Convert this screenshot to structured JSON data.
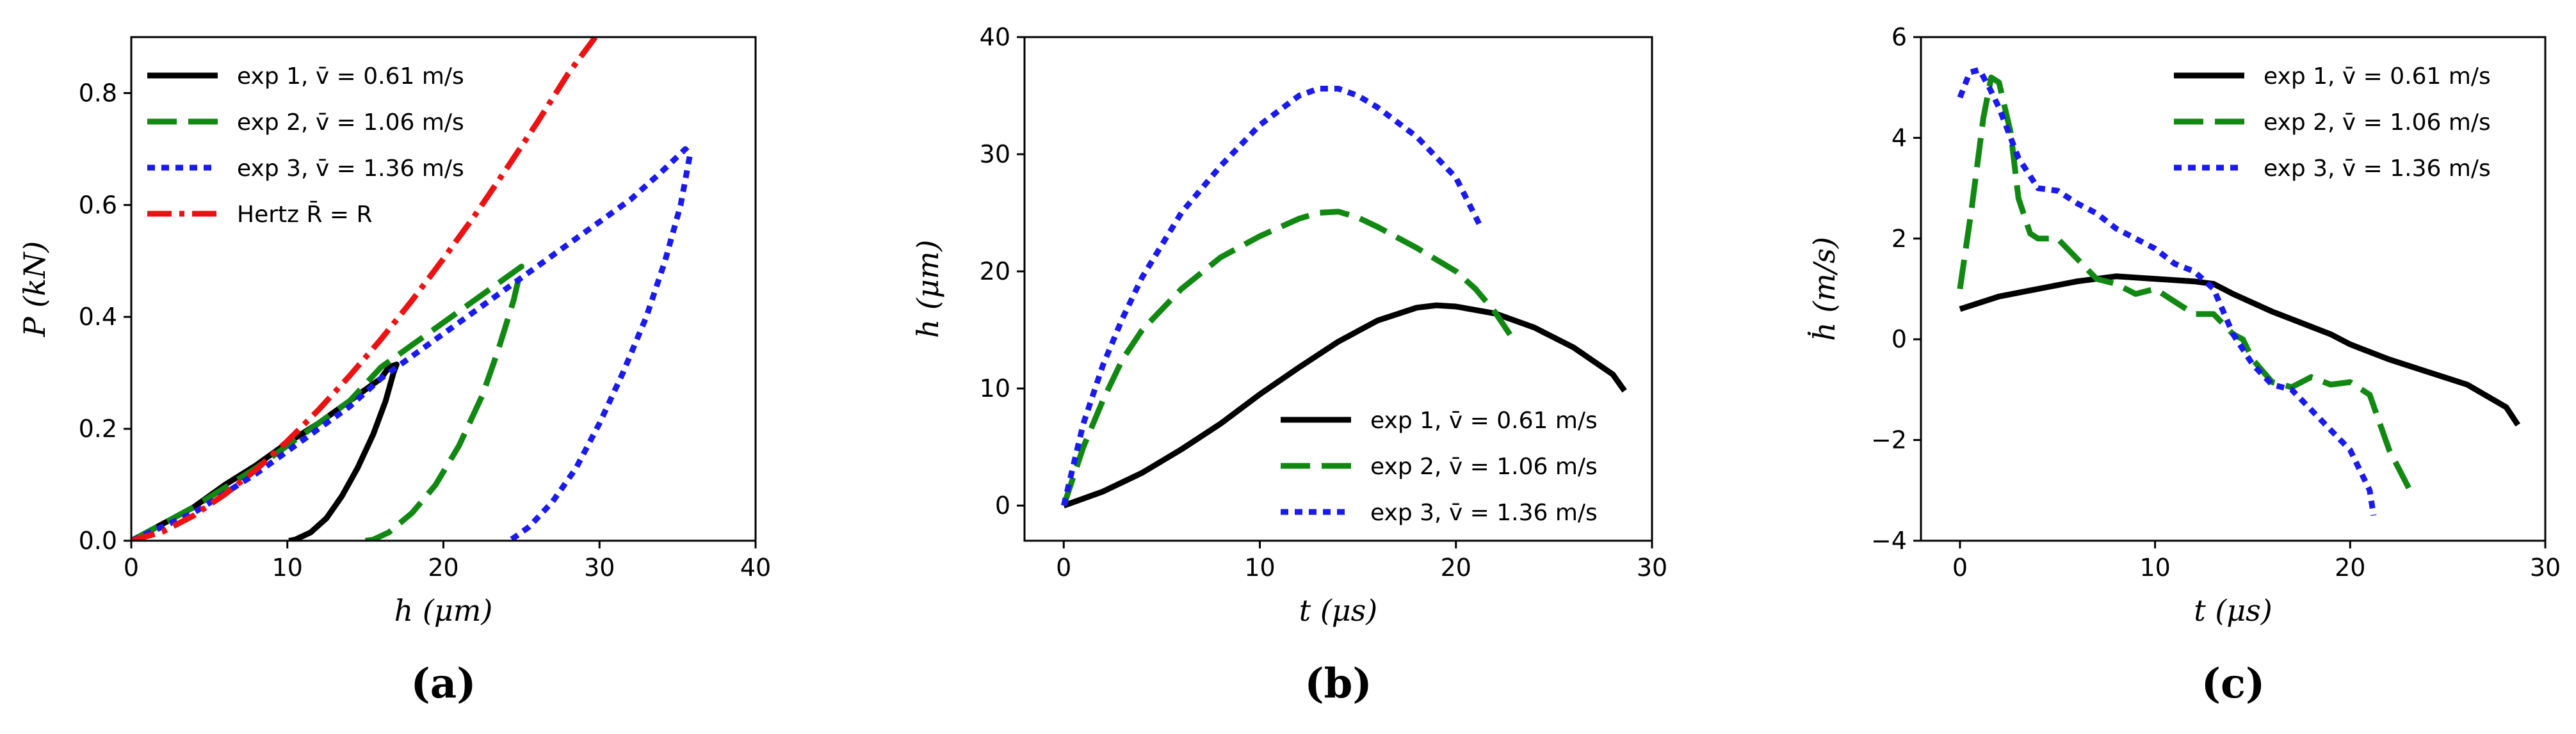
{
  "chart_data": [
    {
      "type": "line",
      "caption": "(a)",
      "xlabel": "h (μm)",
      "ylabel": "P (kN)",
      "xlim": [
        0,
        40
      ],
      "ylim": [
        0,
        0.9
      ],
      "xticks": [
        0,
        10,
        20,
        30,
        40
      ],
      "yticks": [
        0.0,
        0.2,
        0.4,
        0.6,
        0.8
      ],
      "xtick_labels": [
        "0",
        "10",
        "20",
        "30",
        "40"
      ],
      "ytick_labels": [
        "0.0",
        "0.2",
        "0.4",
        "0.6",
        "0.8"
      ],
      "legend_position": "top-left",
      "series": [
        {
          "name": "exp 1, v̄ = 0.61 m/s",
          "color": "#000000",
          "dash": "solid",
          "x": [
            0,
            2,
            4,
            6,
            8,
            10,
            12,
            14,
            15,
            16,
            16.5,
            17,
            16.8,
            16.3,
            15.5,
            14.5,
            13.5,
            12.5,
            11.5,
            10.5,
            10.1
          ],
          "y": [
            0,
            0.03,
            0.06,
            0.1,
            0.135,
            0.175,
            0.21,
            0.25,
            0.27,
            0.29,
            0.31,
            0.315,
            0.3,
            0.25,
            0.19,
            0.13,
            0.08,
            0.04,
            0.015,
            0.002,
            0
          ]
        },
        {
          "name": "exp 2, v̄ = 1.06 m/s",
          "color": "#118811",
          "dash": "longdash",
          "x": [
            0,
            2,
            4,
            6,
            8,
            10,
            12,
            14,
            16,
            18,
            20,
            22,
            24,
            25,
            24.5,
            23.5,
            22.5,
            21,
            19.5,
            18,
            16.5,
            15.5,
            15
          ],
          "y": [
            0,
            0.03,
            0.06,
            0.095,
            0.13,
            0.17,
            0.21,
            0.25,
            0.31,
            0.35,
            0.39,
            0.43,
            0.47,
            0.49,
            0.43,
            0.34,
            0.26,
            0.17,
            0.1,
            0.05,
            0.015,
            0.002,
            0
          ]
        },
        {
          "name": "exp 3, v̄ = 1.36 m/s",
          "color": "#1a1aee",
          "dash": "dotted",
          "x": [
            0,
            2,
            4,
            6,
            8,
            10,
            12,
            14,
            16,
            18,
            20,
            22,
            24,
            26,
            28,
            30,
            32,
            34,
            35.5,
            35.8,
            35.2,
            34.2,
            33,
            31.5,
            30,
            28.5,
            27,
            25.5,
            24.5,
            24.2
          ],
          "y": [
            0,
            0.025,
            0.05,
            0.085,
            0.12,
            0.16,
            0.2,
            0.24,
            0.29,
            0.33,
            0.37,
            0.41,
            0.45,
            0.49,
            0.53,
            0.57,
            0.61,
            0.66,
            0.7,
            0.69,
            0.6,
            0.5,
            0.4,
            0.3,
            0.21,
            0.13,
            0.07,
            0.025,
            0.005,
            0
          ]
        },
        {
          "name": "Hertz R̄ = R",
          "color": "#ee1111",
          "dash": "dashdot",
          "x": [
            0,
            2,
            4,
            6,
            8,
            10,
            12,
            14,
            16,
            18,
            20,
            22,
            24,
            26,
            28,
            30
          ],
          "y": [
            0,
            0.016,
            0.045,
            0.083,
            0.127,
            0.178,
            0.234,
            0.295,
            0.36,
            0.43,
            0.504,
            0.581,
            0.663,
            0.747,
            0.835,
            0.91
          ]
        }
      ]
    },
    {
      "type": "line",
      "caption": "(b)",
      "xlabel": "t (μs)",
      "ylabel": "h (μm)",
      "xlim": [
        -2,
        30
      ],
      "ylim": [
        -3,
        40
      ],
      "xticks": [
        0,
        10,
        20,
        30
      ],
      "yticks": [
        0,
        10,
        20,
        30,
        40
      ],
      "xtick_labels": [
        "0",
        "10",
        "20",
        "30"
      ],
      "ytick_labels": [
        "0",
        "10",
        "20",
        "30",
        "40"
      ],
      "legend_position": "lower-right",
      "series": [
        {
          "name": "exp 1, v̄ = 0.61 m/s",
          "color": "#000000",
          "dash": "solid",
          "x": [
            0,
            2,
            4,
            6,
            8,
            10,
            12,
            14,
            16,
            18,
            19,
            20,
            22,
            24,
            26,
            28,
            28.6
          ],
          "y": [
            0,
            1.2,
            2.8,
            4.8,
            7,
            9.5,
            11.8,
            14,
            15.8,
            16.9,
            17.1,
            17,
            16.4,
            15.2,
            13.5,
            11.2,
            9.8
          ]
        },
        {
          "name": "exp 2, v̄ = 1.06 m/s",
          "color": "#118811",
          "dash": "longdash",
          "x": [
            0,
            1,
            2,
            3,
            4,
            6,
            8,
            10,
            12,
            13,
            14,
            15,
            16,
            18,
            20,
            21,
            22,
            23
          ],
          "y": [
            0,
            5,
            9,
            12.5,
            15,
            18.5,
            21.2,
            23,
            24.5,
            25,
            25.1,
            24.6,
            23.8,
            22,
            20,
            18.5,
            16.5,
            14
          ]
        },
        {
          "name": "exp 3, v̄ = 1.36 m/s",
          "color": "#1a1aee",
          "dash": "dotted",
          "x": [
            0,
            1,
            2,
            3,
            4,
            6,
            8,
            10,
            12,
            13,
            14,
            15,
            16,
            18,
            20,
            21.2
          ],
          "y": [
            0,
            7,
            12,
            16,
            19.5,
            25,
            29,
            32.5,
            35,
            35.6,
            35.6,
            35,
            34,
            31.5,
            28,
            24
          ]
        }
      ]
    },
    {
      "type": "line",
      "caption": "(c)",
      "xlabel": "t (μs)",
      "ylabel": "ḣ (m/s)",
      "xlim": [
        -2,
        30
      ],
      "ylim": [
        -4,
        6
      ],
      "xticks": [
        0,
        10,
        20,
        30
      ],
      "yticks": [
        -4,
        -2,
        0,
        2,
        4,
        6
      ],
      "xtick_labels": [
        "0",
        "10",
        "20",
        "30"
      ],
      "ytick_labels": [
        "−4",
        "−2",
        "0",
        "2",
        "4",
        "6"
      ],
      "legend_position": "top-right",
      "series": [
        {
          "name": "exp 1, v̄ = 0.61 m/s",
          "color": "#000000",
          "dash": "solid",
          "x": [
            0,
            2,
            4,
            6,
            8,
            10,
            12,
            13,
            14,
            16,
            18,
            19,
            20,
            22,
            24,
            26,
            28,
            28.6
          ],
          "y": [
            0.6,
            0.85,
            1.0,
            1.15,
            1.25,
            1.2,
            1.15,
            1.1,
            0.9,
            0.55,
            0.25,
            0.1,
            -0.1,
            -0.4,
            -0.65,
            -0.9,
            -1.35,
            -1.7
          ]
        },
        {
          "name": "exp 2, v̄ = 1.06 m/s",
          "color": "#118811",
          "dash": "longdash",
          "x": [
            0,
            0.6,
            1.2,
            1.6,
            2,
            2.6,
            3,
            3.6,
            4,
            5,
            6,
            7,
            8,
            9,
            10,
            11,
            12,
            13,
            14,
            14.5,
            15,
            16,
            17,
            18,
            19,
            20,
            21,
            22,
            23.2
          ],
          "y": [
            1,
            2.6,
            4.4,
            5.2,
            5.1,
            4.1,
            2.8,
            2.1,
            2.0,
            2.0,
            1.6,
            1.2,
            1.1,
            0.9,
            1.0,
            0.75,
            0.5,
            0.5,
            0.1,
            0,
            -0.4,
            -0.85,
            -0.95,
            -0.75,
            -0.9,
            -0.85,
            -1.1,
            -2.2,
            -3.1
          ]
        },
        {
          "name": "exp 3, v̄ = 1.36 m/s",
          "color": "#1a1aee",
          "dash": "dotted",
          "x": [
            0,
            0.5,
            1,
            1.5,
            2,
            3,
            4,
            5,
            6,
            7,
            8,
            9,
            10,
            11,
            12,
            13,
            14,
            15,
            16,
            17,
            18,
            19,
            20,
            21,
            21.2
          ],
          "y": [
            4.8,
            5.3,
            5.35,
            5.0,
            4.6,
            3.6,
            3.0,
            2.95,
            2.7,
            2.5,
            2.2,
            2.0,
            1.8,
            1.5,
            1.35,
            1.0,
            0.1,
            -0.5,
            -0.9,
            -1.0,
            -1.4,
            -1.8,
            -2.2,
            -3.0,
            -3.5
          ]
        }
      ]
    }
  ]
}
